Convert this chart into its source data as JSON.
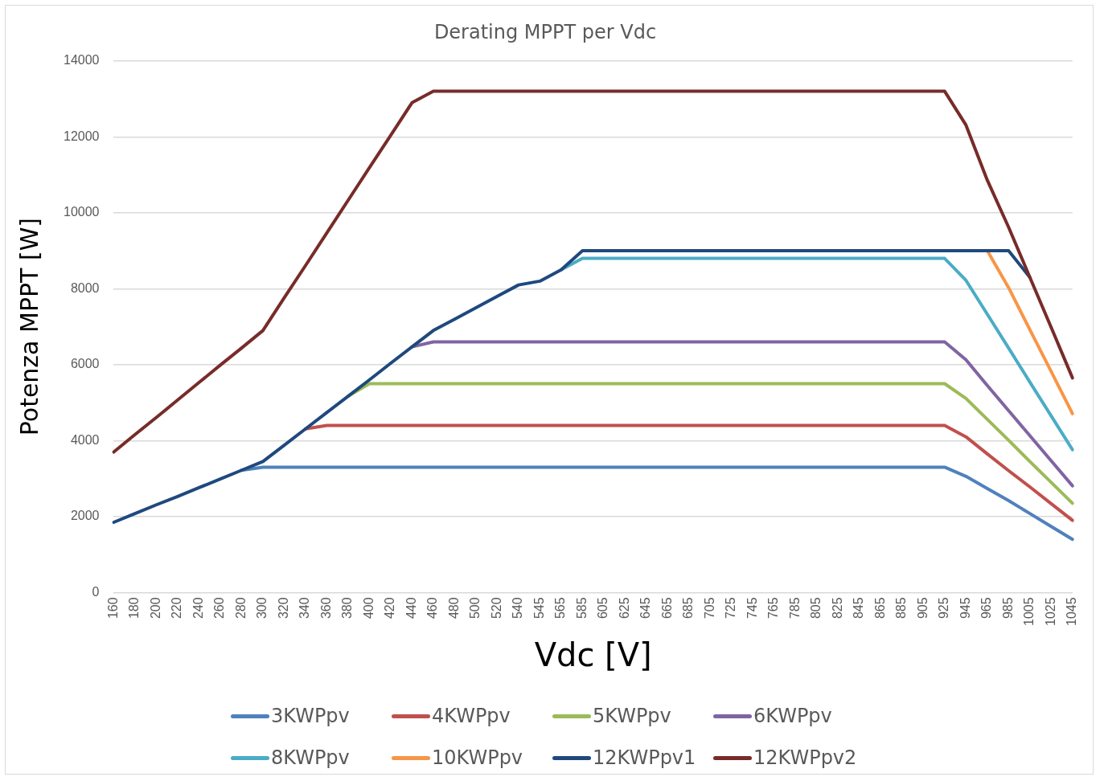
{
  "chart_data": {
    "type": "line",
    "title": "Derating MPPT per Vdc",
    "xlabel": "Vdc [V]",
    "ylabel": "Potenza MPPT [W]",
    "categories": [
      "160",
      "180",
      "200",
      "220",
      "240",
      "260",
      "280",
      "300",
      "320",
      "340",
      "360",
      "380",
      "400",
      "420",
      "440",
      "460",
      "480",
      "500",
      "520",
      "540",
      "545",
      "565",
      "585",
      "605",
      "625",
      "645",
      "665",
      "685",
      "705",
      "725",
      "745",
      "765",
      "785",
      "805",
      "825",
      "845",
      "865",
      "885",
      "905",
      "925",
      "945",
      "965",
      "985",
      "1005",
      "1025",
      "1045"
    ],
    "ylim": [
      0,
      14000
    ],
    "yticks": [
      0,
      2000,
      4000,
      6000,
      8000,
      10000,
      12000,
      14000
    ],
    "grid": "y",
    "legend": "bottom",
    "marker": "none",
    "line_style": "solid",
    "series": [
      {
        "name": "3KWPpv",
        "color": "#4f81bd",
        "values": [
          null,
          null,
          null,
          null,
          null,
          null,
          3220,
          3300,
          3300,
          3300,
          3300,
          3300,
          3300,
          3300,
          3300,
          3300,
          3300,
          3300,
          3300,
          3300,
          3300,
          3300,
          3300,
          3300,
          3300,
          3300,
          3300,
          3300,
          3300,
          3300,
          3300,
          3300,
          3300,
          3300,
          3300,
          3300,
          3300,
          3300,
          3300,
          3300,
          3060,
          2740,
          2420,
          2080,
          1740,
          1400
        ]
      },
      {
        "name": "4KWPpv",
        "color": "#c0504d",
        "values": [
          null,
          null,
          null,
          null,
          null,
          null,
          null,
          null,
          null,
          4310,
          4400,
          4400,
          4400,
          4400,
          4400,
          4400,
          4400,
          4400,
          4400,
          4400,
          4400,
          4400,
          4400,
          4400,
          4400,
          4400,
          4400,
          4400,
          4400,
          4400,
          4400,
          4400,
          4400,
          4400,
          4400,
          4400,
          4400,
          4400,
          4400,
          4400,
          4100,
          3650,
          3210,
          2780,
          2340,
          1900
        ]
      },
      {
        "name": "5KWPpv",
        "color": "#9bbb59",
        "values": [
          null,
          null,
          null,
          null,
          null,
          null,
          null,
          null,
          null,
          null,
          null,
          5170,
          5500,
          5500,
          5500,
          5500,
          5500,
          5500,
          5500,
          5500,
          5500,
          5500,
          5500,
          5500,
          5500,
          5500,
          5500,
          5500,
          5500,
          5500,
          5500,
          5500,
          5500,
          5500,
          5500,
          5500,
          5500,
          5500,
          5500,
          5500,
          5110,
          4560,
          4010,
          3450,
          2900,
          2350
        ]
      },
      {
        "name": "6KWPpv",
        "color": "#8064a2",
        "values": [
          null,
          null,
          null,
          null,
          null,
          null,
          null,
          null,
          null,
          null,
          null,
          null,
          null,
          null,
          6470,
          6600,
          6600,
          6600,
          6600,
          6600,
          6600,
          6600,
          6600,
          6600,
          6600,
          6600,
          6600,
          6600,
          6600,
          6600,
          6600,
          6600,
          6600,
          6600,
          6600,
          6600,
          6600,
          6600,
          6600,
          6600,
          6130,
          5450,
          4790,
          4130,
          3470,
          2810
        ]
      },
      {
        "name": "8KWPpv",
        "color": "#4bacc6",
        "values": [
          null,
          null,
          null,
          null,
          null,
          null,
          null,
          null,
          null,
          null,
          null,
          null,
          null,
          null,
          null,
          null,
          null,
          null,
          null,
          null,
          null,
          8500,
          8800,
          8800,
          8800,
          8800,
          8800,
          8800,
          8800,
          8800,
          8800,
          8800,
          8800,
          8800,
          8800,
          8800,
          8800,
          8800,
          8800,
          8800,
          8220,
          7330,
          6440,
          5540,
          4650,
          3760
        ]
      },
      {
        "name": "10KWPpv",
        "color": "#f79646",
        "values": [
          null,
          null,
          null,
          null,
          null,
          null,
          null,
          null,
          null,
          null,
          null,
          null,
          null,
          null,
          null,
          null,
          null,
          null,
          null,
          null,
          null,
          null,
          null,
          null,
          null,
          null,
          null,
          null,
          null,
          null,
          null,
          null,
          null,
          null,
          null,
          null,
          null,
          null,
          null,
          null,
          null,
          9000,
          8030,
          6920,
          5820,
          4710
        ]
      },
      {
        "name": "12KWPpv1",
        "color": "#1f497d",
        "values": [
          1850,
          2080,
          2310,
          2530,
          2760,
          2990,
          3220,
          3450,
          3880,
          4310,
          4740,
          5170,
          5600,
          6040,
          6470,
          6900,
          7200,
          7500,
          7800,
          8100,
          8200,
          8500,
          9000,
          9000,
          9000,
          9000,
          9000,
          9000,
          9000,
          9000,
          9000,
          9000,
          9000,
          9000,
          9000,
          9000,
          9000,
          9000,
          9000,
          9000,
          9000,
          9000,
          9000,
          8300,
          null,
          null
        ]
      },
      {
        "name": "12KWPpv2",
        "color": "#772c2a",
        "values": [
          3700,
          4160,
          4610,
          5070,
          5530,
          5990,
          6440,
          6900,
          7760,
          8610,
          9470,
          10330,
          11190,
          12040,
          12900,
          13200,
          13200,
          13200,
          13200,
          13200,
          13200,
          13200,
          13200,
          13200,
          13200,
          13200,
          13200,
          13200,
          13200,
          13200,
          13200,
          13200,
          13200,
          13200,
          13200,
          13200,
          13200,
          13200,
          13200,
          13200,
          12310,
          10860,
          9620,
          8300,
          6980,
          5650
        ]
      }
    ]
  }
}
